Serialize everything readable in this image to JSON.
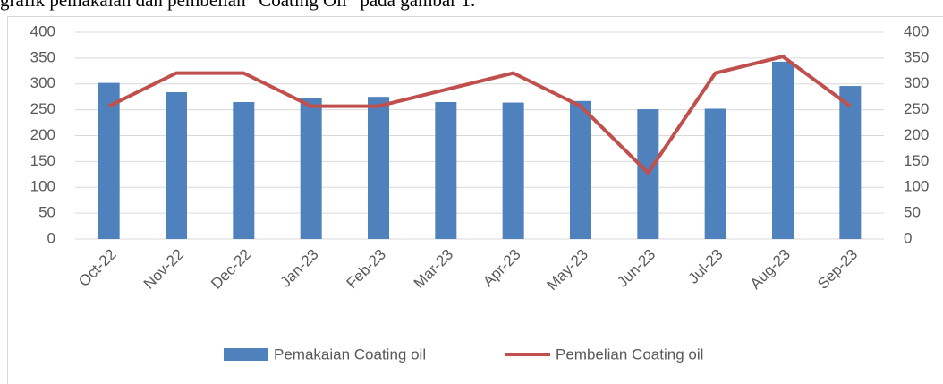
{
  "caption": "grafik pemakaian dan pembelian “Coating Oil” pada gambar 1.",
  "chart_data": {
    "type": "bar_line",
    "categories": [
      "Oct-22",
      "Nov-22",
      "Dec-22",
      "Jan-23",
      "Feb-23",
      "Mar-23",
      "Apr-23",
      "May-23",
      "Jun-23",
      "Jul-23",
      "Aug-23",
      "Sep-23"
    ],
    "series": [
      {
        "name": "Pemakaian Coating oil",
        "type": "bar",
        "color": "#4f81bd",
        "values": [
          302,
          284,
          265,
          272,
          275,
          265,
          264,
          267,
          251,
          252,
          343,
          296
        ]
      },
      {
        "name": "Pembelian Coating oil",
        "type": "line",
        "color": "#c0504d",
        "axis": "y2",
        "values": [
          257,
          321,
          321,
          257,
          257,
          289,
          321,
          257,
          128,
          321,
          353,
          257
        ]
      }
    ],
    "ylim": [
      0,
      400
    ],
    "yticks": [
      0,
      50,
      100,
      150,
      200,
      250,
      300,
      350,
      400
    ],
    "y2lim": [
      0,
      400
    ],
    "y2ticks": [
      0,
      50,
      100,
      150,
      200,
      250,
      300,
      350,
      400
    ],
    "grid": true,
    "legend": "bottom"
  }
}
